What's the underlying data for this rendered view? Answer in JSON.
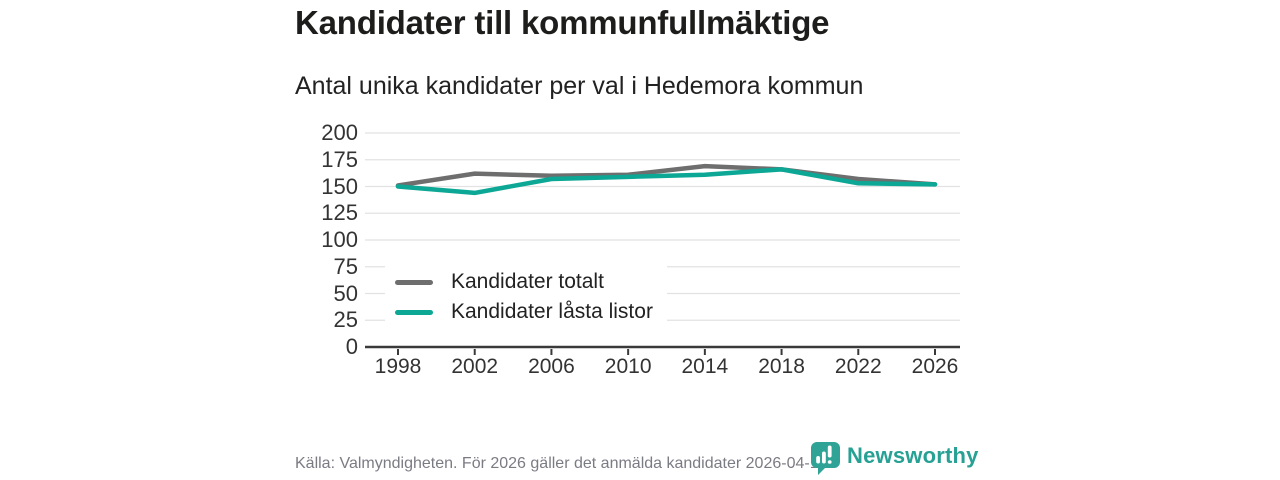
{
  "header": {
    "title": "Kandidater till kommunfullmäktige",
    "subtitle": "Antal unika kandidater per val i Hedemora kommun"
  },
  "chart_data": {
    "type": "line",
    "title": "Kandidater till kommunfullmäktige",
    "subtitle": "Antal unika kandidater per val i Hedemora kommun",
    "categories": [
      "1998",
      "2002",
      "2006",
      "2010",
      "2014",
      "2018",
      "2022",
      "2026"
    ],
    "series": [
      {
        "name": "Kandidater totalt",
        "color": "#6e6e6e",
        "values": [
          151,
          162,
          160,
          161,
          169,
          166,
          157,
          152
        ]
      },
      {
        "name": "Kandidater låsta listor",
        "color": "#0ca795",
        "values": [
          150,
          144,
          157,
          159,
          161,
          166,
          153,
          152
        ]
      }
    ],
    "ylim": [
      0,
      200
    ],
    "yticks": [
      0,
      25,
      50,
      75,
      100,
      125,
      150,
      175,
      200
    ],
    "xlabel": "",
    "ylabel": "",
    "grid": "horizontal",
    "legend_position": "inside-bottom-left"
  },
  "footer": {
    "source": "Källa: Valmyndigheten. För 2026 gäller det anmälda kandidater 2026-04-10."
  },
  "branding": {
    "name": "Newsworthy",
    "logo_icon": "speech-bubble-bar-chart-icon",
    "color": "#27a194"
  },
  "colors": {
    "gridline": "#e2e2e2",
    "axis": "#3a3a3a",
    "text_dark": "#1d1d1b",
    "text_muted": "#7b7b84"
  }
}
